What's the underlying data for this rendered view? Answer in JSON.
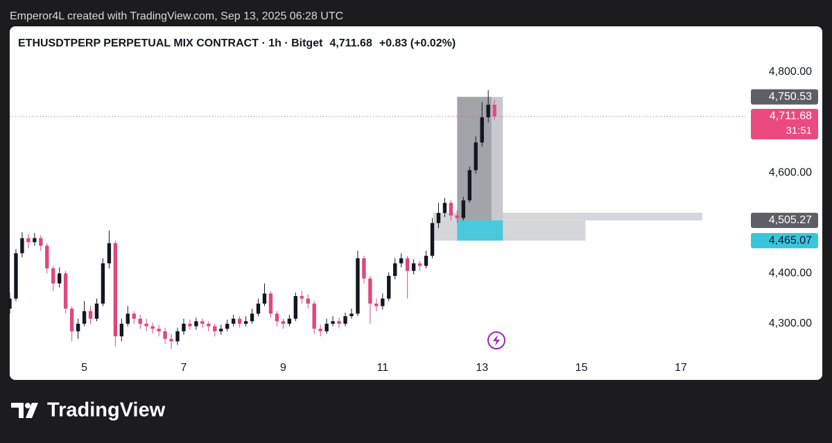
{
  "credit": "Emperor4L created with TradingView.com, Sep 13, 2025 06:28 UTC",
  "brand": "TradingView",
  "chart_data": {
    "type": "candlestick",
    "title": "ETHUSDTPERP PERPETUAL MIX CONTRACT · 1h · Bitget",
    "last_price": "4,711.68",
    "change": "+0.83 (+0.02%)",
    "up_color": "#131722",
    "down_color": "#e0487d",
    "x": [
      3.5,
      3.625,
      3.75,
      3.875,
      4.0,
      4.125,
      4.25,
      4.375,
      4.5,
      4.625,
      4.75,
      4.875,
      5.0,
      5.125,
      5.25,
      5.375,
      5.5,
      5.625,
      5.75,
      5.875,
      6.0,
      6.125,
      6.25,
      6.375,
      6.5,
      6.625,
      6.75,
      6.875,
      7.0,
      7.125,
      7.25,
      7.375,
      7.5,
      7.625,
      7.75,
      7.875,
      8.0,
      8.125,
      8.25,
      8.375,
      8.5,
      8.625,
      8.75,
      8.875,
      9.0,
      9.125,
      9.25,
      9.375,
      9.5,
      9.625,
      9.75,
      9.875,
      10.0,
      10.125,
      10.25,
      10.375,
      10.5,
      10.625,
      10.75,
      10.875,
      11.0,
      11.125,
      11.25,
      11.375,
      11.5,
      11.625,
      11.75,
      11.875,
      12.0,
      12.125,
      12.25,
      12.375,
      12.5,
      12.625,
      12.75,
      12.875,
      13.0,
      13.125,
      13.25
    ],
    "open": [
      4330,
      4350,
      4440,
      4470,
      4462,
      4470,
      4455,
      4410,
      4380,
      4400,
      4330,
      4285,
      4300,
      4325,
      4310,
      4340,
      4420,
      4460,
      4275,
      4300,
      4320,
      4310,
      4300,
      4295,
      4290,
      4285,
      4270,
      4265,
      4285,
      4300,
      4295,
      4305,
      4300,
      4295,
      4285,
      4290,
      4300,
      4310,
      4300,
      4305,
      4320,
      4340,
      4360,
      4320,
      4305,
      4300,
      4310,
      4355,
      4350,
      4340,
      4290,
      4285,
      4300,
      4305,
      4300,
      4315,
      4320,
      4430,
      4390,
      4340,
      4335,
      4350,
      4395,
      4420,
      4430,
      4405,
      4420,
      4415,
      4435,
      4500,
      4520,
      4540,
      4515,
      4510,
      4545,
      4605,
      4660,
      4710,
      4735
    ],
    "high": [
      4362,
      4448,
      4482,
      4478,
      4480,
      4476,
      4460,
      4415,
      4412,
      4405,
      4335,
      4310,
      4345,
      4335,
      4350,
      4430,
      4485,
      4465,
      4310,
      4335,
      4325,
      4318,
      4310,
      4302,
      4298,
      4292,
      4280,
      4292,
      4310,
      4308,
      4312,
      4310,
      4305,
      4300,
      4298,
      4308,
      4318,
      4315,
      4315,
      4330,
      4350,
      4380,
      4365,
      4325,
      4310,
      4318,
      4362,
      4365,
      4358,
      4345,
      4298,
      4310,
      4315,
      4312,
      4322,
      4330,
      4445,
      4435,
      4395,
      4350,
      4360,
      4402,
      4430,
      4440,
      4435,
      4428,
      4425,
      4445,
      4510,
      4540,
      4550,
      4545,
      4525,
      4552,
      4612,
      4672,
      4740,
      4764,
      4745
    ],
    "low": [
      4320,
      4345,
      4432,
      4450,
      4455,
      4445,
      4400,
      4365,
      4372,
      4320,
      4265,
      4270,
      4295,
      4300,
      4305,
      4335,
      4410,
      4255,
      4265,
      4295,
      4300,
      4290,
      4285,
      4280,
      4275,
      4260,
      4250,
      4258,
      4278,
      4288,
      4288,
      4292,
      4285,
      4275,
      4278,
      4285,
      4295,
      4292,
      4295,
      4300,
      4315,
      4335,
      4312,
      4295,
      4290,
      4295,
      4305,
      4340,
      4330,
      4280,
      4275,
      4280,
      4295,
      4292,
      4295,
      4310,
      4315,
      4380,
      4300,
      4325,
      4328,
      4345,
      4388,
      4412,
      4350,
      4398,
      4405,
      4410,
      4430,
      4490,
      4512,
      4505,
      4500,
      4505,
      4540,
      4598,
      4652,
      4700,
      4705
    ],
    "close": [
      4350,
      4440,
      4470,
      4462,
      4470,
      4455,
      4410,
      4380,
      4400,
      4330,
      4285,
      4300,
      4325,
      4310,
      4340,
      4420,
      4460,
      4275,
      4300,
      4320,
      4310,
      4300,
      4295,
      4290,
      4285,
      4270,
      4265,
      4285,
      4300,
      4295,
      4305,
      4300,
      4295,
      4285,
      4290,
      4300,
      4310,
      4300,
      4305,
      4320,
      4340,
      4360,
      4320,
      4305,
      4300,
      4310,
      4355,
      4350,
      4340,
      4290,
      4285,
      4300,
      4305,
      4300,
      4315,
      4320,
      4430,
      4390,
      4340,
      4335,
      4350,
      4395,
      4420,
      4430,
      4405,
      4420,
      4415,
      4435,
      4500,
      4520,
      4540,
      4515,
      4510,
      4545,
      4605,
      4660,
      4710,
      4735,
      4711.68
    ],
    "xlim": [
      3.5,
      18.31
    ],
    "xticks": [
      5,
      7,
      9,
      11,
      13,
      15,
      17
    ],
    "ylim": [
      4238,
      4881
    ],
    "yticks": [
      {
        "value": 4800,
        "label": "4,800.00"
      },
      {
        "value": 4600,
        "label": "4,600.00"
      },
      {
        "value": 4400,
        "label": "4,400.00"
      },
      {
        "value": 4300,
        "label": "4,300.00"
      }
    ],
    "zones": [
      {
        "x": [
          12.02,
          15.08
        ],
        "y": [
          4465.07,
          4505.27
        ],
        "color": "#d5d6da"
      },
      {
        "x": [
          12.02,
          17.43
        ],
        "y": [
          4505.27,
          4520.5
        ],
        "color": "#d5d6da"
      },
      {
        "x": [
          12.5,
          13.42
        ],
        "y": [
          4505.27,
          4750.53
        ],
        "color": "#c8c9ce"
      },
      {
        "x": [
          12.5,
          13.19
        ],
        "y": [
          4505.27,
          4750.53
        ],
        "color": "#a3a4aa"
      },
      {
        "x": [
          12.5,
          13.42
        ],
        "y": [
          4465.07,
          4505.27
        ],
        "color": "#4cc8dc"
      }
    ],
    "price_labels": [
      {
        "value": 4750.53,
        "label": "4,750.53",
        "color": "#5d5f66",
        "text_color": "#ffffff"
      },
      {
        "value": 4711.68,
        "label": "4,711.68",
        "sublabel": "31:51",
        "color": "#ea4a80",
        "text_color": "#ffffff"
      },
      {
        "value": 4505.27,
        "label": "4,505.27",
        "color": "#5d5f66",
        "text_color": "#ffffff"
      },
      {
        "value": 4465.07,
        "label": "4,465.07",
        "color": "#37c6dc",
        "text_color": "#131722"
      }
    ]
  }
}
